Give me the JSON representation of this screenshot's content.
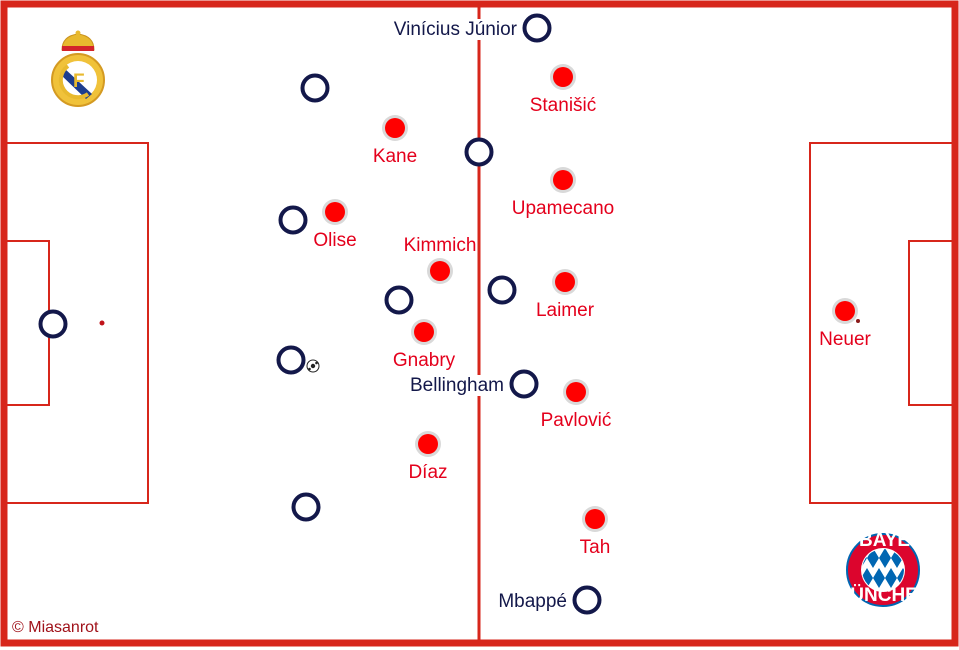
{
  "colors": {
    "pitch_lines": "#d7261b",
    "bayern": "#ff0000",
    "bayern_halo": "#d9d9d9",
    "real": "#13184a",
    "label_bayern": "#e4001c",
    "label_real": "#13184a"
  },
  "credit": "© Miasanrot",
  "logos": {
    "left": "Real Madrid crest",
    "right": "FC BAYERN MÜNCHEN"
  },
  "bayern_players": [
    {
      "name": "Stanišić"
    },
    {
      "name": "Kane"
    },
    {
      "name": "Upamecano"
    },
    {
      "name": "Olise"
    },
    {
      "name": "Kimmich"
    },
    {
      "name": "Laimer"
    },
    {
      "name": "Gnabry"
    },
    {
      "name": "Pavlović"
    },
    {
      "name": "Díaz"
    },
    {
      "name": "Tah"
    },
    {
      "name": "Neuer"
    }
  ],
  "real_players": [
    {
      "name": "Vinícius Júnior"
    },
    {
      "name": ""
    },
    {
      "name": ""
    },
    {
      "name": ""
    },
    {
      "name": ""
    },
    {
      "name": ""
    },
    {
      "name": ""
    },
    {
      "name": ""
    },
    {
      "name": "Bellingham"
    },
    {
      "name": ""
    },
    {
      "name": "Mbappé"
    }
  ]
}
